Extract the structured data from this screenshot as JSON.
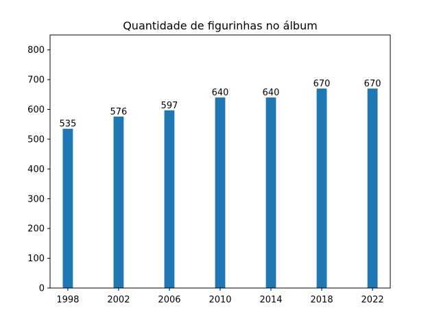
{
  "chart_data": {
    "type": "bar",
    "title": "Quantidade de figurinhas no álbum",
    "xlabel": "",
    "ylabel": "",
    "categories": [
      "1998",
      "2002",
      "2006",
      "2010",
      "2014",
      "2018",
      "2022"
    ],
    "values": [
      535,
      576,
      597,
      640,
      640,
      670,
      670
    ],
    "data_labels": [
      "535",
      "576",
      "597",
      "640",
      "640",
      "670",
      "670"
    ],
    "ylim": [
      0,
      850
    ],
    "yticks": [
      0,
      100,
      200,
      300,
      400,
      500,
      600,
      700,
      800
    ],
    "bar_color": "#1f77b4",
    "grid": false,
    "legend": "none"
  }
}
